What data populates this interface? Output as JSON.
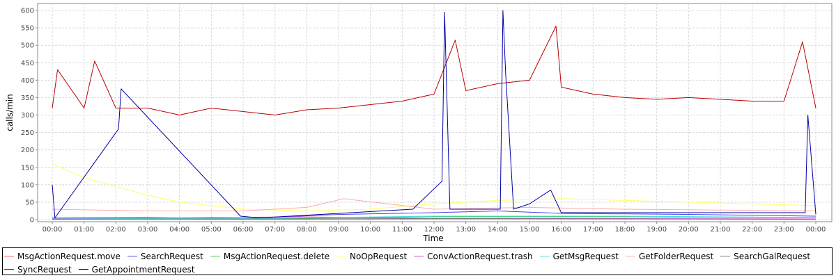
{
  "chart_data": {
    "type": "line",
    "title": "",
    "xlabel": "Time",
    "ylabel": "calls/min",
    "ylim": [
      0,
      620
    ],
    "y_ticks": [
      "0",
      "50",
      "100",
      "150",
      "200",
      "250",
      "300",
      "350",
      "400",
      "450",
      "500",
      "550",
      "600"
    ],
    "x_tick_labels": [
      "00:00",
      "01:00",
      "02:00",
      "03:00",
      "04:00",
      "05:00",
      "06:00",
      "07:00",
      "08:00",
      "09:00",
      "10:00",
      "11:00",
      "12:00",
      "13:00",
      "14:00",
      "15:00",
      "16:00",
      "17:00",
      "18:00",
      "19:00",
      "20:00",
      "21:00",
      "22:00",
      "23:00",
      "00:00"
    ],
    "grid": true,
    "legend_position": "bottom",
    "series": [
      {
        "name": "MsgActionRequest.move",
        "color": "#ff5555",
        "points": [
          [
            "00:00",
            2
          ],
          [
            "06:00",
            1
          ],
          [
            "12:00",
            2
          ],
          [
            "18:00",
            2
          ],
          [
            "24:00",
            2
          ]
        ]
      },
      {
        "name": "SearchRequest",
        "color": "#4444ee",
        "points": [
          [
            "00:00",
            5
          ],
          [
            "03:00",
            6
          ],
          [
            "06:00",
            3
          ],
          [
            "09:00",
            15
          ],
          [
            "12:00",
            20
          ],
          [
            "14:00",
            25
          ],
          [
            "16:00",
            18
          ],
          [
            "20:00",
            15
          ],
          [
            "24:00",
            10
          ]
        ]
      },
      {
        "name": "MsgActionRequest.delete",
        "color": "#44cc44",
        "points": [
          [
            "00:00",
            3
          ],
          [
            "06:00",
            2
          ],
          [
            "12:00",
            8
          ],
          [
            "18:00",
            8
          ],
          [
            "24:00",
            5
          ]
        ]
      },
      {
        "name": "NoOpRequest",
        "color": "#ffff66",
        "points": [
          [
            "00:00",
            160
          ],
          [
            "01:00",
            120
          ],
          [
            "02:00",
            95
          ],
          [
            "03:00",
            70
          ],
          [
            "04:00",
            50
          ],
          [
            "05:00",
            40
          ],
          [
            "06:00",
            30
          ],
          [
            "08:00",
            25
          ],
          [
            "10:00",
            30
          ],
          [
            "12:00",
            45
          ],
          [
            "14:00",
            55
          ],
          [
            "16:00",
            60
          ],
          [
            "18:00",
            55
          ],
          [
            "20:00",
            50
          ],
          [
            "22:00",
            45
          ],
          [
            "24:00",
            40
          ]
        ]
      },
      {
        "name": "ConvActionRequest.trash",
        "color": "#dd44dd",
        "points": [
          [
            "00:00",
            2
          ],
          [
            "07:50",
            8
          ],
          [
            "12:00",
            3
          ],
          [
            "18:00",
            3
          ],
          [
            "24:00",
            2
          ]
        ]
      },
      {
        "name": "GetMsgRequest",
        "color": "#44dddd",
        "points": [
          [
            "00:00",
            4
          ],
          [
            "06:00",
            3
          ],
          [
            "12:00",
            10
          ],
          [
            "18:00",
            10
          ],
          [
            "24:00",
            6
          ]
        ]
      },
      {
        "name": "GetFolderRequest",
        "color": "#ffaaaa",
        "points": [
          [
            "00:00",
            30
          ],
          [
            "03:00",
            25
          ],
          [
            "06:00",
            25
          ],
          [
            "08:00",
            35
          ],
          [
            "09:10",
            60
          ],
          [
            "12:00",
            30
          ],
          [
            "15:00",
            35
          ],
          [
            "18:00",
            30
          ],
          [
            "24:00",
            25
          ]
        ]
      },
      {
        "name": "SearchGalRequest",
        "color": "#777777",
        "points": [
          [
            "00:00",
            1
          ],
          [
            "12:00",
            3
          ],
          [
            "24:00",
            1
          ]
        ]
      },
      {
        "name": "SyncRequest",
        "color": "#bb0000",
        "points": [
          [
            "00:00",
            320
          ],
          [
            "00:10",
            430
          ],
          [
            "01:00",
            320
          ],
          [
            "01:20",
            455
          ],
          [
            "02:00",
            320
          ],
          [
            "03:00",
            320
          ],
          [
            "04:00",
            300
          ],
          [
            "05:00",
            320
          ],
          [
            "06:00",
            310
          ],
          [
            "07:00",
            300
          ],
          [
            "08:00",
            315
          ],
          [
            "09:00",
            320
          ],
          [
            "10:00",
            330
          ],
          [
            "11:00",
            340
          ],
          [
            "12:00",
            360
          ],
          [
            "12:40",
            515
          ],
          [
            "13:00",
            370
          ],
          [
            "14:00",
            390
          ],
          [
            "15:00",
            400
          ],
          [
            "15:50",
            555
          ],
          [
            "16:00",
            380
          ],
          [
            "17:00",
            360
          ],
          [
            "18:00",
            350
          ],
          [
            "19:00",
            345
          ],
          [
            "20:00",
            350
          ],
          [
            "21:00",
            345
          ],
          [
            "22:00",
            340
          ],
          [
            "23:00",
            340
          ],
          [
            "23:35",
            510
          ],
          [
            "24:00",
            320
          ]
        ]
      },
      {
        "name": "GetAppointmentRequest",
        "color": "#0000aa",
        "points": [
          [
            "00:00",
            100
          ],
          [
            "00:05",
            5
          ],
          [
            "02:05",
            260
          ],
          [
            "02:10",
            375
          ],
          [
            "05:55",
            10
          ],
          [
            "06:30",
            5
          ],
          [
            "11:20",
            30
          ],
          [
            "12:15",
            110
          ],
          [
            "12:20",
            595
          ],
          [
            "12:30",
            30
          ],
          [
            "14:05",
            30
          ],
          [
            "14:10",
            600
          ],
          [
            "14:15",
            420
          ],
          [
            "14:30",
            30
          ],
          [
            "15:00",
            45
          ],
          [
            "15:40",
            85
          ],
          [
            "16:00",
            20
          ],
          [
            "23:40",
            20
          ],
          [
            "23:45",
            300
          ],
          [
            "24:00",
            15
          ]
        ]
      }
    ]
  }
}
